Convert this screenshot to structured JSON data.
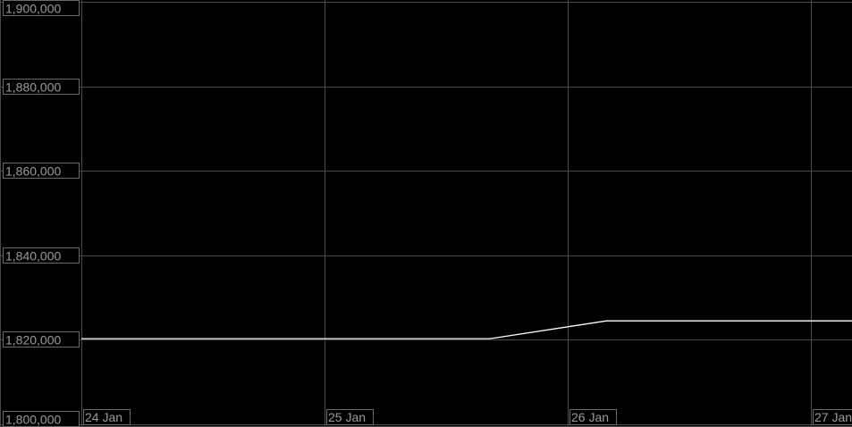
{
  "chart_data": {
    "type": "line",
    "title": "",
    "xlabel": "",
    "ylabel": "",
    "ylim": [
      1800000,
      1900000
    ],
    "xlim": [
      "24 Jan 00:00",
      "27 Jan 04:03"
    ],
    "grid": true,
    "y_ticks": [
      "1,900,000",
      "1,880,000",
      "1,860,000",
      "1,840,000",
      "1,820,000",
      "1,800,000"
    ],
    "y_tick_values": [
      1900000,
      1880000,
      1860000,
      1840000,
      1820000,
      1800000
    ],
    "x_ticks": [
      "24 Jan",
      "25 Jan",
      "26 Jan",
      "27 Jan"
    ],
    "x_tick_values": [
      "24 Jan 00:00",
      "25 Jan 00:00",
      "26 Jan 00:00",
      "27 Jan 00:00"
    ],
    "series": [
      {
        "color": "#ffffff",
        "x": [
          "24 Jan 00:00",
          "25 Jan 16:20",
          "26 Jan 03:50",
          "27 Jan 04:03"
        ],
        "y": [
          1820200,
          1820200,
          1824400,
          1824400
        ]
      }
    ],
    "colors": {
      "background": "#000000",
      "grid": "#4a4a4a",
      "label": "#9a9a9a",
      "line": "#ffffff"
    }
  }
}
